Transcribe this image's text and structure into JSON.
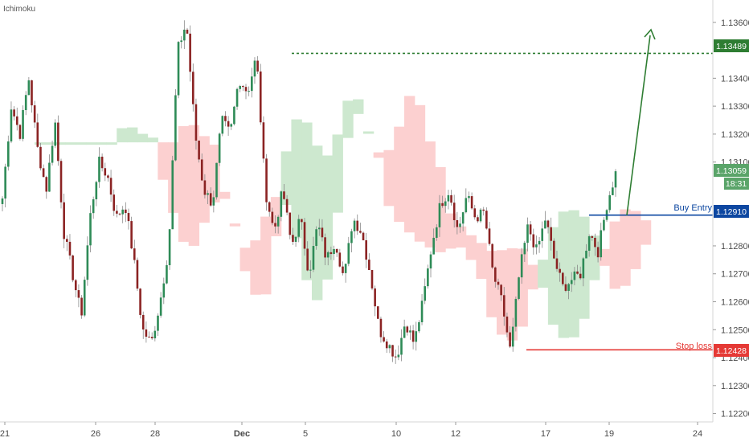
{
  "indicator_label": "Ichimoku",
  "colors": {
    "bull": "#2e8b57",
    "bear": "#8b2323",
    "cloud_bull": "#cde8cf",
    "cloud_bear": "#fcd0d0",
    "target": "#2e7d32",
    "buy": "#0d47a1",
    "stop": "#e53935",
    "current_bg": "#5aa469"
  },
  "chart_data": {
    "type": "candlestick",
    "y_range": [
      1.1217,
      1.1368
    ],
    "y_ticks": [
      "1.13600",
      "1.13400",
      "1.13300",
      "1.13200",
      "1.13100",
      "1.12800",
      "1.12700",
      "1.12600",
      "1.12500",
      "1.12400",
      "1.12300",
      "1.12200"
    ],
    "x_ticks": [
      "21",
      "26",
      "28",
      "Dec",
      "5",
      "10",
      "12",
      "17",
      "19",
      "24"
    ],
    "grid": false,
    "path_points": [
      1.1297,
      1.133,
      1.132,
      1.134,
      1.1315,
      1.13,
      1.1325,
      1.1285,
      1.127,
      1.1255,
      1.129,
      1.131,
      1.1305,
      1.129,
      1.1295,
      1.1275,
      1.125,
      1.1245,
      1.126,
      1.128,
      1.135,
      1.136,
      1.132,
      1.13,
      1.1295,
      1.1325,
      1.132,
      1.134,
      1.1335,
      1.1348,
      1.13,
      1.1285,
      1.13,
      1.128,
      1.129,
      1.127,
      1.1288,
      1.1275,
      1.1282,
      1.1268,
      1.129,
      1.1285,
      1.127,
      1.125,
      1.1245,
      1.124,
      1.1253,
      1.1245,
      1.126,
      1.128,
      1.1295,
      1.13,
      1.1285,
      1.1298,
      1.129,
      1.1292,
      1.127,
      1.126,
      1.1242,
      1.127,
      1.1287,
      1.1278,
      1.129,
      1.1275,
      1.1265,
      1.1268,
      1.127,
      1.1285,
      1.1278,
      1.1295,
      1.1306
    ],
    "current_price": "1.13059",
    "countdown": "18:31",
    "annotations": [
      {
        "label": "",
        "price": "1.13489"
      },
      {
        "label": "Buy Entry",
        "price": "1.12910"
      },
      {
        "label": "Stop loss",
        "price": "1.12428"
      }
    ]
  }
}
